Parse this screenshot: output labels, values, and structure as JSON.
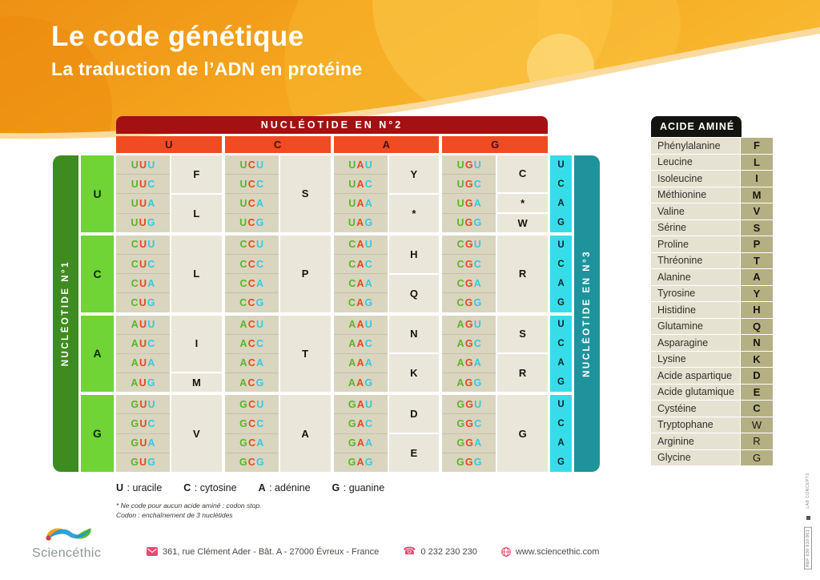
{
  "header": {
    "title": "Le code génétique",
    "subtitle": "La traduction de l’ADN en protéine"
  },
  "table": {
    "top_axis": {
      "label": "NUCLÉOTIDE EN N°2",
      "letters": [
        "U",
        "C",
        "A",
        "G"
      ]
    },
    "left_axis": {
      "label": "NUCLÉOTIDE N°1",
      "letters": [
        "U",
        "C",
        "A",
        "G"
      ]
    },
    "right_axis": {
      "label": "NUCLÉOTIDE EN N°3",
      "letters": [
        "U",
        "C",
        "A",
        "G"
      ]
    },
    "rows": [
      {
        "first": "U",
        "cols": [
          {
            "codons": [
              "UUU",
              "UUC",
              "UUA",
              "UUG"
            ],
            "amino": [
              {
                "letter": "F",
                "span": 2
              },
              {
                "letter": "L",
                "span": 2
              }
            ]
          },
          {
            "codons": [
              "UCU",
              "UCC",
              "UCA",
              "UCG"
            ],
            "amino": [
              {
                "letter": "S",
                "span": 4
              }
            ]
          },
          {
            "codons": [
              "UAU",
              "UAC",
              "UAA",
              "UAG"
            ],
            "amino": [
              {
                "letter": "Y",
                "span": 2
              },
              {
                "letter": "*",
                "span": 2
              }
            ]
          },
          {
            "codons": [
              "UGU",
              "UGC",
              "UGA",
              "UGG"
            ],
            "amino": [
              {
                "letter": "C",
                "span": 2
              },
              {
                "letter": "*",
                "span": 1
              },
              {
                "letter": "W",
                "span": 1
              }
            ]
          }
        ]
      },
      {
        "first": "C",
        "cols": [
          {
            "codons": [
              "CUU",
              "CUC",
              "CUA",
              "CUG"
            ],
            "amino": [
              {
                "letter": "L",
                "span": 4
              }
            ]
          },
          {
            "codons": [
              "CCU",
              "CCC",
              "CCA",
              "CCG"
            ],
            "amino": [
              {
                "letter": "P",
                "span": 4
              }
            ]
          },
          {
            "codons": [
              "CAU",
              "CAC",
              "CAA",
              "CAG"
            ],
            "amino": [
              {
                "letter": "H",
                "span": 2
              },
              {
                "letter": "Q",
                "span": 2
              }
            ]
          },
          {
            "codons": [
              "CGU",
              "CGC",
              "CGA",
              "CGG"
            ],
            "amino": [
              {
                "letter": "R",
                "span": 4
              }
            ]
          }
        ]
      },
      {
        "first": "A",
        "cols": [
          {
            "codons": [
              "AUU",
              "AUC",
              "AUA",
              "AUG"
            ],
            "amino": [
              {
                "letter": "I",
                "span": 3
              },
              {
                "letter": "M",
                "span": 1
              }
            ]
          },
          {
            "codons": [
              "ACU",
              "ACC",
              "ACA",
              "ACG"
            ],
            "amino": [
              {
                "letter": "T",
                "span": 4
              }
            ]
          },
          {
            "codons": [
              "AAU",
              "AAC",
              "AAA",
              "AAG"
            ],
            "amino": [
              {
                "letter": "N",
                "span": 2
              },
              {
                "letter": "K",
                "span": 2
              }
            ]
          },
          {
            "codons": [
              "AGU",
              "AGC",
              "AGA",
              "AGG"
            ],
            "amino": [
              {
                "letter": "S",
                "span": 2
              },
              {
                "letter": "R",
                "span": 2
              }
            ]
          }
        ]
      },
      {
        "first": "G",
        "cols": [
          {
            "codons": [
              "GUU",
              "GUC",
              "GUA",
              "GUG"
            ],
            "amino": [
              {
                "letter": "V",
                "span": 4
              }
            ]
          },
          {
            "codons": [
              "GCU",
              "GCC",
              "GCA",
              "GCG"
            ],
            "amino": [
              {
                "letter": "A",
                "span": 4
              }
            ]
          },
          {
            "codons": [
              "GAU",
              "GAC",
              "GAA",
              "GAG"
            ],
            "amino": [
              {
                "letter": "D",
                "span": 2
              },
              {
                "letter": "E",
                "span": 2
              }
            ]
          },
          {
            "codons": [
              "GGU",
              "GGC",
              "GGA",
              "GGG"
            ],
            "amino": [
              {
                "letter": "G",
                "span": 4
              }
            ]
          }
        ]
      }
    ]
  },
  "amino_table": {
    "header": "ACIDE AMINÉ",
    "rows": [
      {
        "name": "Phénylalanine",
        "code": "F"
      },
      {
        "name": "Leucine",
        "code": "L"
      },
      {
        "name": "Isoleucine",
        "code": "I"
      },
      {
        "name": "Méthionine",
        "code": "M"
      },
      {
        "name": "Valine",
        "code": "V"
      },
      {
        "name": "Sérine",
        "code": "S"
      },
      {
        "name": "Proline",
        "code": "P"
      },
      {
        "name": "Thréonine",
        "code": "T"
      },
      {
        "name": "Alanine",
        "code": "A"
      },
      {
        "name": "Tyrosine",
        "code": "Y"
      },
      {
        "name": "Histidine",
        "code": "H"
      },
      {
        "name": "Glutamine",
        "code": "Q"
      },
      {
        "name": "Asparagine",
        "code": "N"
      },
      {
        "name": "Lysine",
        "code": "K"
      },
      {
        "name": "Acide aspartique",
        "code": "D"
      },
      {
        "name": "Acide glutamique",
        "code": "E"
      },
      {
        "name": "Cystéine",
        "code": "C"
      },
      {
        "name": "Tryptophane",
        "code": "W",
        "light": true
      },
      {
        "name": "Arginine",
        "code": "R",
        "light": true
      },
      {
        "name": "Glycine",
        "code": "G",
        "light": true
      }
    ]
  },
  "legend": {
    "items": [
      {
        "letter": "U",
        "name": "uracile"
      },
      {
        "letter": "C",
        "name": "cytosine"
      },
      {
        "letter": "A",
        "name": "adénine"
      },
      {
        "letter": "G",
        "name": "guanine"
      }
    ]
  },
  "footnotes": [
    "* Ne code pour aucun acide aminé : codon stop.",
    "Codon : enchaînement de 3 nuclétides"
  ],
  "footer": {
    "brand": "Sciencéthic",
    "address": "361, rue Clément Ader - Bât. A - 27000 Évreux - France",
    "phone": "0 232 230 230",
    "website": "www.sciencethic.com"
  },
  "side_print": {
    "line1": "LAB CONCEPTS",
    "code": "REF 030 910 801"
  },
  "colors": {
    "header_bar": "#a31112",
    "col_header": "#f04b22",
    "left_bar": "#3e8c20",
    "left_cell": "#70d336",
    "right_cell": "#38dce8",
    "right_bar": "#1f939c",
    "codon_bg": "#d9d5bf",
    "amino_bg": "#eae7da",
    "position_colors": [
      "#5cb32a",
      "#e8481f",
      "#35c9de"
    ],
    "accent_pink": "#e9486e",
    "orange_main": "#f5a71e"
  }
}
